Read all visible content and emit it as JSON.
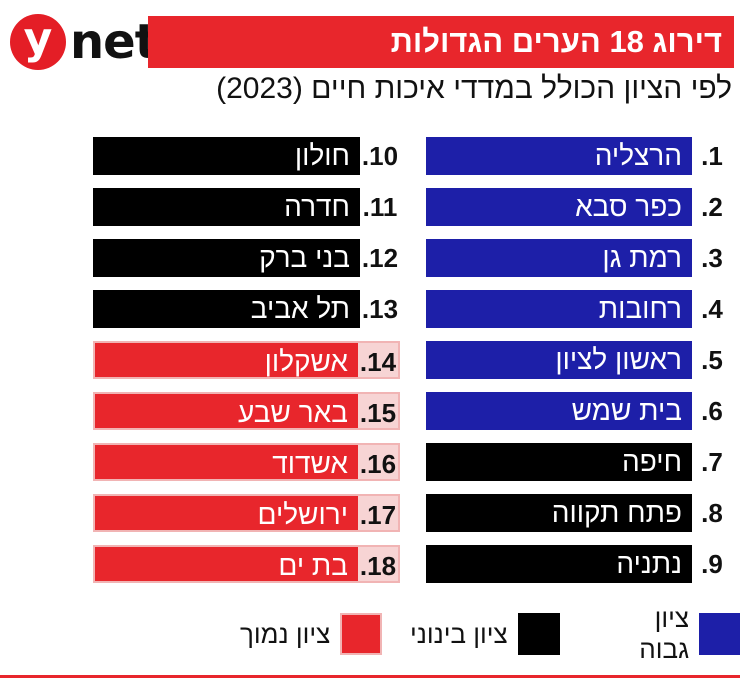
{
  "logo": {
    "y": "y",
    "net": "net"
  },
  "title": "דירוג 18 הערים הגדולות",
  "subtitle": "לפי הציון הכולל במדדי איכות חיים (2023)",
  "colors": {
    "high": "#1d1fa8",
    "mid": "#000000",
    "low": "#e8262c"
  },
  "ranking": [
    {
      "rank": "1.",
      "city": "הרצליה",
      "tier": "high"
    },
    {
      "rank": "2.",
      "city": "כפר סבא",
      "tier": "high"
    },
    {
      "rank": "3.",
      "city": "רמת גן",
      "tier": "high"
    },
    {
      "rank": "4.",
      "city": "רחובות",
      "tier": "high"
    },
    {
      "rank": "5.",
      "city": "ראשון לציון",
      "tier": "high"
    },
    {
      "rank": "6.",
      "city": "בית שמש",
      "tier": "high"
    },
    {
      "rank": "7.",
      "city": "חיפה",
      "tier": "mid"
    },
    {
      "rank": "8.",
      "city": "פתח תקווה",
      "tier": "mid"
    },
    {
      "rank": "9.",
      "city": "נתניה",
      "tier": "mid"
    },
    {
      "rank": "10.",
      "city": "חולון",
      "tier": "mid"
    },
    {
      "rank": "11.",
      "city": "חדרה",
      "tier": "mid"
    },
    {
      "rank": "12.",
      "city": "בני ברק",
      "tier": "mid"
    },
    {
      "rank": "13.",
      "city": "תל אביב",
      "tier": "mid"
    },
    {
      "rank": "14.",
      "city": "אשקלון",
      "tier": "low"
    },
    {
      "rank": "15.",
      "city": "באר שבע",
      "tier": "low"
    },
    {
      "rank": "16.",
      "city": "אשדוד",
      "tier": "low"
    },
    {
      "rank": "17.",
      "city": "ירושלים",
      "tier": "low"
    },
    {
      "rank": "18.",
      "city": "בת ים",
      "tier": "low"
    }
  ],
  "legend": {
    "high": "ציון גבוה",
    "mid": "ציון בינוני",
    "low": "ציון נמוך"
  }
}
